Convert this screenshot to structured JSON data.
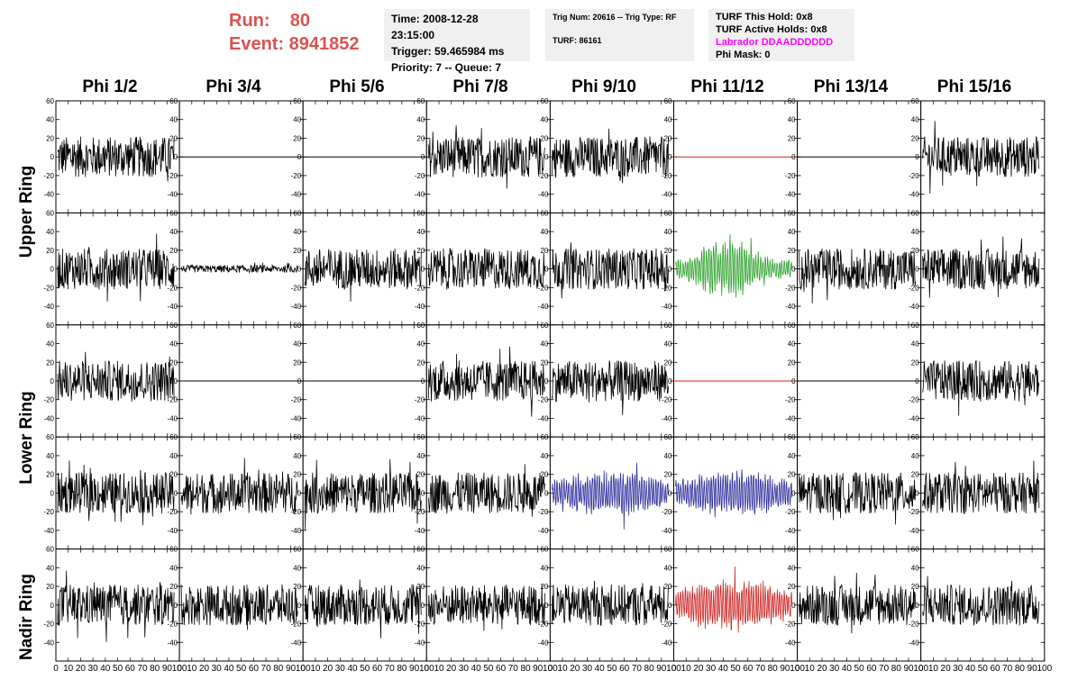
{
  "header": {
    "run_label": "Run:    80",
    "event_label": "Event: 8941852",
    "time": "Time: 2008-12-28 23:15:00",
    "trigger": "Trigger: 59.465984 ms",
    "priority_queue": "Priority: 7 -- Queue: 7",
    "trig_num_type": "Trig Num: 20616 -- Trig Type: RF",
    "turf": "TURF: 86161",
    "turf_this_hold": "TURF This Hold: 0x8",
    "turf_active_holds": "TURF Active Holds: 0x8",
    "labrador": "Labrador DDAADDDDDD",
    "phi_mask": "Phi Mask: 0"
  },
  "colors": {
    "title_red": "#d9534f",
    "labrador_magenta": "#ff00ff",
    "trace_default": "#000000",
    "trace_green": "#2ca02c",
    "trace_blue": "#2b2b9b",
    "trace_red": "#cc2222",
    "flat_red": "#cc2222"
  },
  "phi_headers": [
    "Phi 1/2",
    "Phi 3/4",
    "Phi 5/6",
    "Phi 7/8",
    "Phi 9/10",
    "Phi 11/12",
    "Phi 13/14",
    "Phi 15/16"
  ],
  "ring_labels": [
    "Upper Ring",
    "Lower Ring",
    "Nadir Ring"
  ],
  "axes": {
    "y_ticks": [
      "60",
      "40",
      "20",
      "0",
      "-20",
      "-40",
      "-60"
    ],
    "x_ticks": [
      "0",
      "10",
      "20",
      "30",
      "40",
      "50",
      "60",
      "70",
      "80",
      "90",
      "100"
    ]
  },
  "panels": [
    [
      "noisy",
      "flat",
      "flat",
      "noisy",
      "noisy",
      "flat-red",
      "flat",
      "noisy"
    ],
    [
      "noisy",
      "low",
      "noisy",
      "noisy",
      "noisy",
      "green",
      "noisy",
      "noisy"
    ],
    [
      "noisy",
      "flat",
      "flat",
      "noisy",
      "noisy",
      "flat-red",
      "flat",
      "noisy"
    ],
    [
      "noisy",
      "noisy",
      "noisy",
      "noisy",
      "blue",
      "blue",
      "noisy",
      "noisy"
    ],
    [
      "noisy",
      "noisy",
      "noisy",
      "noisy",
      "noisy",
      "red",
      "noisy",
      "noisy"
    ]
  ]
}
